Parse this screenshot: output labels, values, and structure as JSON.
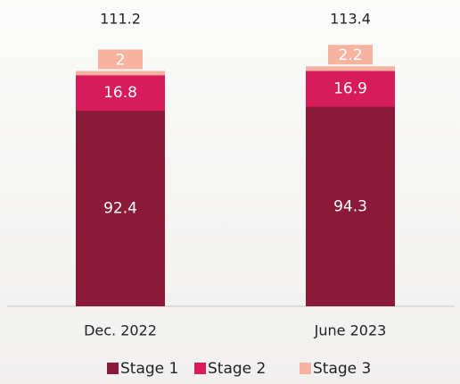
{
  "chart_data": {
    "type": "stacked_bar",
    "categories": [
      "Dec. 2022",
      "June 2023"
    ],
    "series": [
      {
        "name": "Stage 1",
        "color": "#8b1a3a",
        "values": [
          92.4,
          94.3
        ]
      },
      {
        "name": "Stage 2",
        "color": "#d81b5a",
        "values": [
          16.8,
          16.9
        ]
      },
      {
        "name": "Stage 3",
        "color": "#f6b3a0",
        "values": [
          2.0,
          2.2
        ]
      }
    ],
    "totals": [
      111.2,
      113.4
    ]
  }
}
